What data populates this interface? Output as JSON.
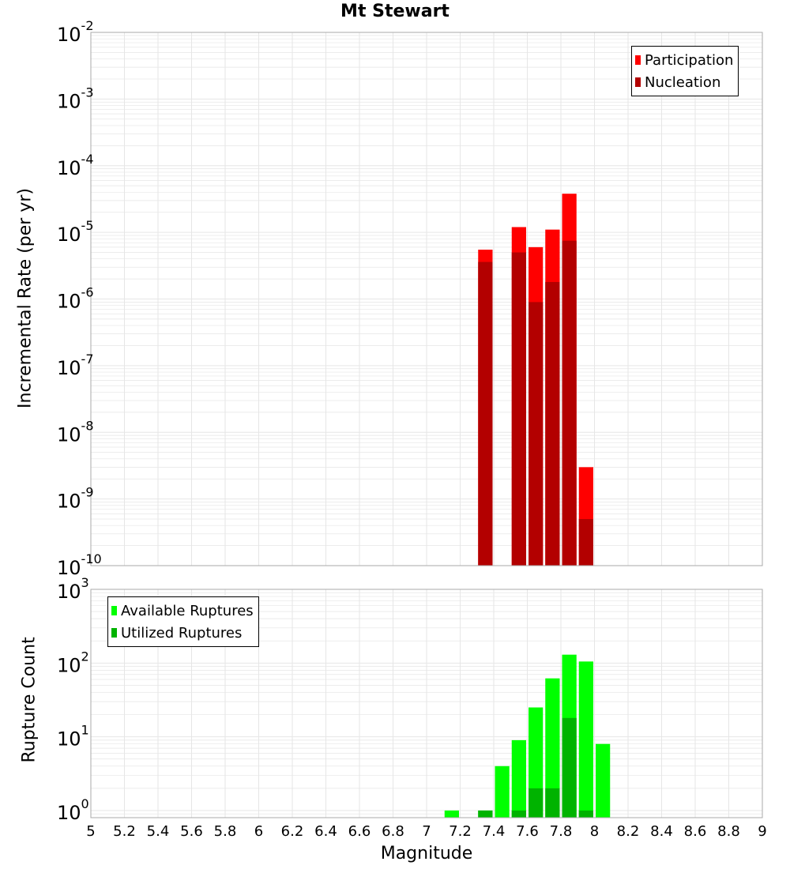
{
  "title": "Mt Stewart",
  "colors": {
    "participation": "#ff0000",
    "nucleation": "#b30000",
    "available": "#00ff00",
    "utilized": "#00b300",
    "grid": "#e6e6e6",
    "plot_border": "#aaaaaa"
  },
  "chart_data": [
    {
      "type": "bar",
      "panel": "top",
      "yscale": "log",
      "ylim": [
        1e-10,
        0.01
      ],
      "xlim": [
        5,
        9
      ],
      "ylabel": "Incremental Rate (per yr)",
      "y_ticks": [
        {
          "base": "10",
          "exp": "-10",
          "value": 1e-10
        },
        {
          "base": "10",
          "exp": "-9",
          "value": 1e-09
        },
        {
          "base": "10",
          "exp": "-8",
          "value": 1e-08
        },
        {
          "base": "10",
          "exp": "-7",
          "value": 1e-07
        },
        {
          "base": "10",
          "exp": "-6",
          "value": 1e-06
        },
        {
          "base": "10",
          "exp": "-5",
          "value": 1e-05
        },
        {
          "base": "10",
          "exp": "-4",
          "value": 0.0001
        },
        {
          "base": "10",
          "exp": "-3",
          "value": 0.001
        },
        {
          "base": "10",
          "exp": "-2",
          "value": 0.01
        }
      ],
      "legend": {
        "position": "top-right",
        "entries": [
          "Participation",
          "Nucleation"
        ]
      },
      "bin_width": 0.1,
      "x": [
        7.35,
        7.55,
        7.65,
        7.75,
        7.85,
        7.95
      ],
      "series": [
        {
          "name": "Participation",
          "values": [
            5.5e-06,
            1.2e-05,
            6e-06,
            1.1e-05,
            3.8e-05,
            3e-09
          ]
        },
        {
          "name": "Nucleation",
          "values": [
            3.6e-06,
            5e-06,
            9e-07,
            1.8e-06,
            7.5e-06,
            5e-10
          ]
        }
      ]
    },
    {
      "type": "bar",
      "panel": "bottom",
      "yscale": "log",
      "ylim": [
        0.8,
        1000
      ],
      "xlim": [
        5,
        9
      ],
      "ylabel": "Rupture Count",
      "xlabel": "Magnitude",
      "y_ticks": [
        {
          "base": "10",
          "exp": "0",
          "value": 1
        },
        {
          "base": "10",
          "exp": "1",
          "value": 10
        },
        {
          "base": "10",
          "exp": "2",
          "value": 100
        },
        {
          "base": "10",
          "exp": "3",
          "value": 1000
        }
      ],
      "x_ticks": [
        "5",
        "5.2",
        "5.4",
        "5.6",
        "5.8",
        "6",
        "6.2",
        "6.4",
        "6.6",
        "6.8",
        "7",
        "7.2",
        "7.4",
        "7.6",
        "7.8",
        "8",
        "8.2",
        "8.4",
        "8.6",
        "8.8",
        "9"
      ],
      "legend": {
        "position": "top-left",
        "entries": [
          "Available Ruptures",
          "Utilized Ruptures"
        ]
      },
      "bin_width": 0.1,
      "x": [
        7.15,
        7.35,
        7.45,
        7.55,
        7.65,
        7.75,
        7.85,
        7.95,
        8.05
      ],
      "series": [
        {
          "name": "Available Ruptures",
          "values": [
            1,
            1,
            4,
            9,
            25,
            62,
            130,
            105,
            8
          ]
        },
        {
          "name": "Utilized Ruptures",
          "values": [
            null,
            1,
            null,
            1,
            2,
            2,
            18,
            1,
            null
          ]
        }
      ]
    }
  ]
}
